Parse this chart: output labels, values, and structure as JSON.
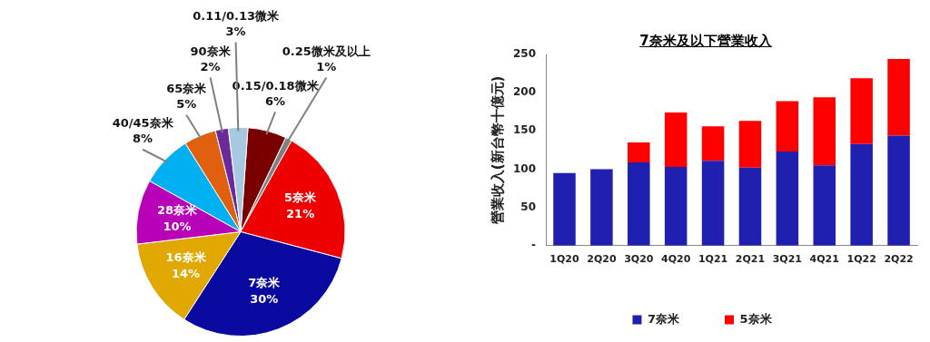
{
  "chart_data": [
    {
      "type": "pie",
      "categories": [
        "0.15/0.18微米",
        "0.25微米及以上",
        "5奈米",
        "7奈米",
        "16奈米",
        "28奈米",
        "40/45奈米",
        "65奈米",
        "90奈米",
        "0.11/0.13微米"
      ],
      "values": [
        6,
        1,
        21,
        30,
        14,
        10,
        8,
        5,
        2,
        3
      ],
      "value_labels": [
        "6%",
        "1%",
        "21%",
        "30%",
        "14%",
        "10%",
        "8%",
        "5%",
        "2%",
        "3%"
      ],
      "colors": [
        "#7a0000",
        "#808080",
        "#ee0000",
        "#0a0aa0",
        "#e0a800",
        "#b800b8",
        "#00b0f0",
        "#e06010",
        "#6a2a9a",
        "#a8c8e0"
      ],
      "legend": false
    },
    {
      "type": "bar",
      "title": "7奈米及以下營業收入",
      "ylabel": "營業收入(新台幣十億元)",
      "categories": [
        "1Q20",
        "2Q20",
        "3Q20",
        "4Q20",
        "1Q21",
        "2Q21",
        "3Q21",
        "4Q21",
        "1Q22",
        "2Q22"
      ],
      "stacked": true,
      "series": [
        {
          "name": "7奈米",
          "color": "#2020b0",
          "values": [
            95,
            100,
            109,
            103,
            111,
            102,
            123,
            105,
            133,
            144
          ]
        },
        {
          "name": "5奈米",
          "color": "#ff0000",
          "values": [
            null,
            null,
            26,
            71,
            45,
            61,
            66,
            89,
            86,
            100
          ]
        }
      ],
      "ylim": [
        0,
        250
      ],
      "yticks": [
        {
          "value": 0,
          "label": "-"
        },
        50,
        100,
        150,
        200,
        250
      ],
      "grid": false,
      "legend": "bottom"
    }
  ]
}
